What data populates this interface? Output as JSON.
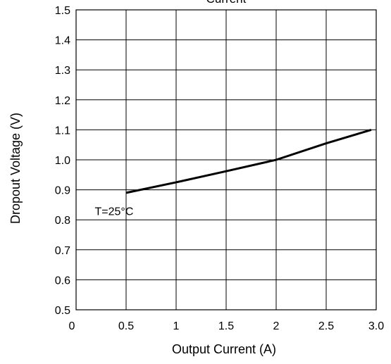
{
  "chart_data": {
    "type": "line",
    "title": "Current",
    "xlabel": "Output Current (A)",
    "ylabel": "Dropout Voltage (V)",
    "xlim": [
      0,
      3.0
    ],
    "ylim": [
      0.5,
      1.5
    ],
    "grid": true,
    "x_ticks": [
      0,
      0.5,
      1,
      1.5,
      2,
      2.5,
      3.0
    ],
    "x_tick_labels": [
      "0",
      "0.5",
      "1",
      "1.5",
      "2",
      "2.5",
      "3.0"
    ],
    "y_ticks": [
      0.5,
      0.6,
      0.7,
      0.8,
      0.9,
      1.0,
      1.1,
      1.2,
      1.3,
      1.4,
      1.5
    ],
    "y_tick_labels": [
      "0.5",
      "0.6",
      "0.7",
      "0.8",
      "0.9",
      "1.0",
      "1.1",
      "1.2",
      "1.3",
      "1.4",
      "1.5"
    ],
    "series": [
      {
        "x": [
          0.5,
          1.0,
          1.5,
          2.0,
          2.5,
          2.95
        ],
        "y": [
          0.89,
          0.925,
          0.962,
          1.0,
          1.055,
          1.1
        ],
        "color": "#000000"
      }
    ],
    "annotations": [
      {
        "text": "T=25°C",
        "x": 0.38,
        "y": 0.83
      }
    ]
  }
}
